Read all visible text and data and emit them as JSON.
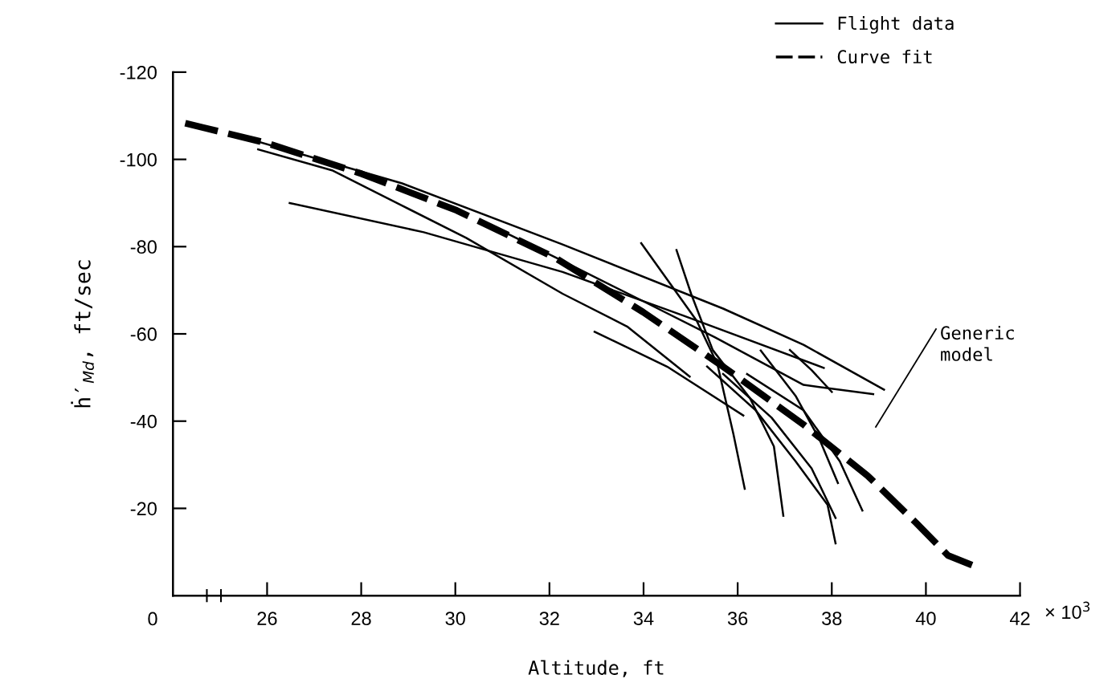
{
  "chart_data": {
    "type": "line",
    "xlabel": "Altitude, ft",
    "ylabel": "ḣ′$_{Md}$, ft/sec",
    "xlim": [
      24,
      42
    ],
    "xticks": [
      26,
      28,
      30,
      32,
      34,
      36,
      38,
      40,
      42
    ],
    "ylim": [
      0,
      -120
    ],
    "yticks": [
      -20,
      -40,
      -60,
      -80,
      -100,
      -120
    ],
    "grid": false,
    "legend": "top right",
    "marker": "none",
    "annotations": [
      "0",
      "× 10$^{3}$",
      "Generic\nmodel"
    ],
    "series": [
      {
        "name": "Flight data",
        "color": "#000000",
        "line_style": "solid",
        "x": [
          25.57,
          28.87,
          32.28,
          35.69,
          37.4,
          39.11
        ],
        "values": [
          -104.8,
          -94.5,
          -80.5,
          -65.8,
          -57.5,
          -47.2
        ]
      },
      {
        "color": "#000000",
        "line_style": "solid",
        "x": [
          25.81,
          27.38,
          30.23,
          32.28,
          33.65,
          34.98
        ],
        "values": [
          -102.3,
          -97.5,
          -82,
          -69.2,
          -61.7,
          -50.2
        ]
      },
      {
        "color": "#000000",
        "line_style": "solid",
        "x": [
          26.48,
          29.33,
          32.28,
          34.84,
          37.83
        ],
        "values": [
          -90,
          -83.3,
          -74.2,
          -64.2,
          -52.2
        ]
      },
      {
        "color": "#000000",
        "line_style": "solid",
        "x": [
          30.97,
          32.28,
          33.99,
          35.52,
          37.4,
          38.88
        ],
        "values": [
          -83.7,
          -76.7,
          -67.5,
          -59.2,
          -48.3,
          -46.2
        ]
      },
      {
        "color": "#000000",
        "line_style": "solid",
        "x": [
          32.96,
          34.5,
          36.12
        ],
        "values": [
          -60.5,
          -52.5,
          -41.3
        ]
      },
      {
        "color": "#000000",
        "line_style": "solid",
        "x": [
          33.95,
          35.13,
          35.57,
          35.91,
          36.15
        ],
        "values": [
          -80.8,
          -63,
          -53,
          -37,
          -24.5
        ]
      },
      {
        "color": "#000000",
        "line_style": "solid",
        "x": [
          34.7,
          35.01,
          35.47,
          36.26,
          36.77,
          36.97
        ],
        "values": [
          -79.2,
          -69.2,
          -56.3,
          -45.3,
          -34.2,
          -18.3
        ]
      },
      {
        "color": "#000000",
        "line_style": "solid",
        "x": [
          36.49,
          37.23,
          37.74,
          38.13
        ],
        "values": [
          -56.2,
          -45.8,
          -35.8,
          -25.8
        ]
      },
      {
        "color": "#000000",
        "line_style": "solid",
        "x": [
          37.11,
          37.57,
          38.0
        ],
        "values": [
          -56.3,
          -51.7,
          -46.7
        ]
      },
      {
        "color": "#000000",
        "line_style": "solid",
        "x": [
          35.35,
          36.38,
          37.23,
          37.91,
          38.08
        ],
        "values": [
          -52.5,
          -42.5,
          -30.8,
          -20.8,
          -12
        ]
      },
      {
        "color": "#000000",
        "line_style": "solid",
        "x": [
          35.69,
          36.72,
          37.57,
          38.08
        ],
        "values": [
          -50.8,
          -40.8,
          -29.2,
          -17.8
        ]
      },
      {
        "color": "#000000",
        "line_style": "solid",
        "x": [
          36.2,
          37.4,
          38.17,
          38.65
        ],
        "values": [
          -50.8,
          -42.5,
          -30.8,
          -19.5
        ]
      },
      {
        "name": "Curve fit",
        "color": "#000000",
        "line_style": "dashed",
        "x": [
          24.26,
          25.97,
          28.01,
          30.03,
          32.11,
          33.99,
          35.69,
          37.4,
          38.76,
          39.79,
          40.47,
          40.98
        ],
        "values": [
          -108.3,
          -103.8,
          -96.7,
          -88.3,
          -77.5,
          -65,
          -52.5,
          -39.2,
          -27.5,
          -16.7,
          -9.2,
          -7
        ]
      }
    ]
  }
}
